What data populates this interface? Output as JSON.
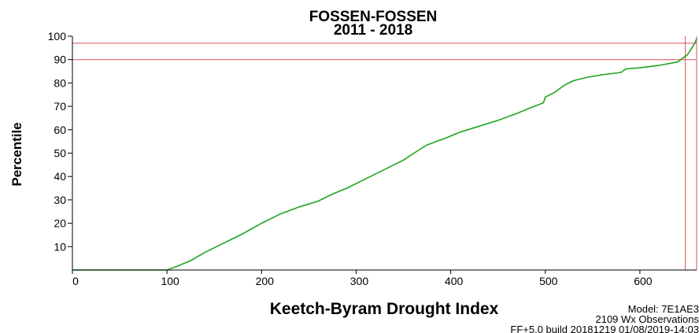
{
  "chart_data": {
    "type": "line",
    "title": "FOSSEN-FOSSEN",
    "subtitle": "2011 - 2018",
    "xlabel": "Keetch-Byram Drought Index",
    "ylabel": "Percentile",
    "xlim": [
      0,
      660
    ],
    "ylim": [
      0,
      100
    ],
    "x_ticks": [
      0,
      100,
      200,
      300,
      400,
      500,
      600
    ],
    "y_ticks": [
      10,
      20,
      30,
      40,
      50,
      60,
      70,
      80,
      90,
      100
    ],
    "grid": false,
    "line_color": "#1fa51f",
    "reference_color": "#e05050",
    "reference_lines": {
      "horizontal": [
        90,
        97
      ],
      "vertical": [
        648,
        660
      ]
    },
    "series": [
      {
        "x": [
          0,
          100,
          110,
          125,
          140,
          160,
          180,
          200,
          220,
          240,
          260,
          275,
          290,
          310,
          330,
          350,
          365,
          375,
          385,
          395,
          410,
          430,
          450,
          470,
          485,
          498,
          500,
          510,
          520,
          525,
          530,
          545,
          560,
          580,
          585,
          600,
          620,
          640,
          645,
          650,
          655,
          658,
          660
        ],
        "y": [
          0,
          0,
          1.5,
          4,
          7.5,
          11.5,
          15.5,
          20,
          24,
          27,
          29.5,
          32.5,
          35,
          39,
          43,
          47,
          51,
          53.5,
          55,
          56.5,
          59,
          61.5,
          64,
          67,
          69.5,
          71.5,
          74,
          76,
          79,
          80,
          81,
          82.5,
          83.5,
          84.5,
          86,
          86.5,
          87.5,
          89,
          90.5,
          92,
          95,
          97,
          99
        ]
      }
    ]
  },
  "footer": {
    "model": "Model: 7E1AE3",
    "observations": "2109 Wx Observations",
    "build": "FF+5.0 build 20181219 01/08/2019-14:03"
  }
}
